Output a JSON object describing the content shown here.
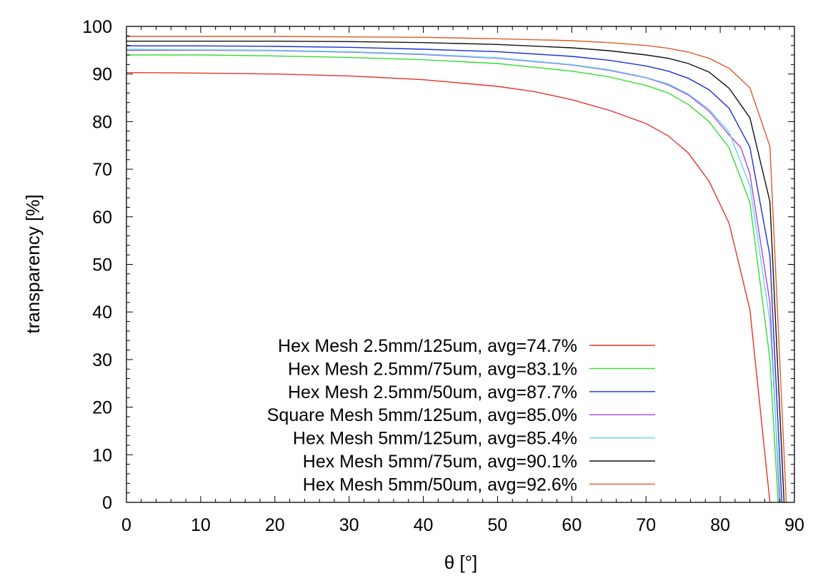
{
  "chart_data": {
    "type": "line",
    "xlabel": "θ [°]",
    "ylabel": "transparency [%]",
    "xlim": [
      0,
      90
    ],
    "ylim": [
      0,
      100
    ],
    "xticks": [
      0,
      10,
      20,
      30,
      40,
      50,
      60,
      70,
      80,
      90
    ],
    "yticks": [
      0,
      10,
      20,
      30,
      40,
      50,
      60,
      70,
      80,
      90,
      100
    ],
    "grid": false,
    "legend_position": "bottom-center",
    "series": [
      {
        "name": "Hex Mesh 2.5mm/125um, avg=74.7%",
        "color": "#e8332a",
        "points": [
          [
            0,
            90.3
          ],
          [
            10,
            90.2
          ],
          [
            20,
            90.0
          ],
          [
            30,
            89.6
          ],
          [
            40,
            88.8
          ],
          [
            50,
            87.4
          ],
          [
            55,
            86.3
          ],
          [
            60,
            84.6
          ],
          [
            65,
            82.4
          ],
          [
            70,
            79.6
          ],
          [
            73,
            77.0
          ],
          [
            75.7,
            73.4
          ],
          [
            78.5,
            67.5
          ],
          [
            81.2,
            58.6
          ],
          [
            84.0,
            40.5
          ],
          [
            86.7,
            0
          ]
        ]
      },
      {
        "name": "Hex Mesh 2.5mm/75um, avg=83.1%",
        "color": "#33dd33",
        "points": [
          [
            0,
            94.0
          ],
          [
            10,
            94.0
          ],
          [
            20,
            93.8
          ],
          [
            30,
            93.5
          ],
          [
            40,
            93.0
          ],
          [
            50,
            92.2
          ],
          [
            60,
            90.6
          ],
          [
            65,
            89.4
          ],
          [
            70,
            87.6
          ],
          [
            73,
            86.0
          ],
          [
            75.7,
            83.6
          ],
          [
            78.5,
            80.0
          ],
          [
            81.2,
            74.5
          ],
          [
            84.0,
            63.0
          ],
          [
            86.7,
            30.0
          ],
          [
            87.8,
            0
          ]
        ]
      },
      {
        "name": "Hex Mesh 2.5mm/50um, avg=87.7%",
        "color": "#1a2ed6",
        "points": [
          [
            0,
            95.9
          ],
          [
            10,
            95.9
          ],
          [
            20,
            95.8
          ],
          [
            30,
            95.6
          ],
          [
            40,
            95.2
          ],
          [
            50,
            94.7
          ],
          [
            60,
            93.7
          ],
          [
            65,
            92.9
          ],
          [
            70,
            91.7
          ],
          [
            73,
            90.6
          ],
          [
            75.7,
            89.1
          ],
          [
            78.5,
            86.7
          ],
          [
            81.2,
            82.8
          ],
          [
            84.0,
            74.6
          ],
          [
            86.7,
            51.8
          ],
          [
            88.3,
            0
          ]
        ]
      },
      {
        "name": "Square Mesh 5mm/125um, avg=85.0%",
        "color": "#b040e0",
        "points": [
          [
            0,
            95.0
          ],
          [
            10,
            95.0
          ],
          [
            20,
            94.9
          ],
          [
            30,
            94.6
          ],
          [
            40,
            94.1
          ],
          [
            50,
            93.3
          ],
          [
            60,
            91.9
          ],
          [
            65,
            90.8
          ],
          [
            70,
            89.2
          ],
          [
            73,
            87.7
          ],
          [
            75.7,
            85.6
          ],
          [
            78.5,
            82.2
          ],
          [
            81.2,
            77.2
          ],
          [
            82.8,
            74.5
          ],
          [
            84.0,
            69.0
          ],
          [
            86.7,
            42.0
          ],
          [
            88.0,
            0
          ]
        ]
      },
      {
        "name": "Hex Mesh 5mm/125um, avg=85.4%",
        "color": "#5fd8f0",
        "points": [
          [
            0,
            95.2
          ],
          [
            10,
            95.1
          ],
          [
            20,
            95.0
          ],
          [
            30,
            94.7
          ],
          [
            40,
            94.2
          ],
          [
            50,
            93.4
          ],
          [
            60,
            92.0
          ],
          [
            65,
            90.9
          ],
          [
            70,
            89.3
          ],
          [
            73,
            87.9
          ],
          [
            75.7,
            85.8
          ],
          [
            78.5,
            82.6
          ],
          [
            81.2,
            77.8
          ],
          [
            84.0,
            66.5
          ],
          [
            86.7,
            38.0
          ],
          [
            88.1,
            0
          ]
        ]
      },
      {
        "name": "Hex Mesh 5mm/75um, avg=90.1%",
        "color": "#111111",
        "points": [
          [
            0,
            96.9
          ],
          [
            10,
            96.9
          ],
          [
            20,
            96.9
          ],
          [
            30,
            96.8
          ],
          [
            40,
            96.6
          ],
          [
            50,
            96.2
          ],
          [
            60,
            95.5
          ],
          [
            65,
            94.9
          ],
          [
            70,
            94.0
          ],
          [
            73,
            93.3
          ],
          [
            75.7,
            92.2
          ],
          [
            78.5,
            90.4
          ],
          [
            81.2,
            87.0
          ],
          [
            84.0,
            80.8
          ],
          [
            86.7,
            63.2
          ],
          [
            88.6,
            0
          ]
        ]
      },
      {
        "name": "Hex Mesh 5mm/50um, avg=92.6%",
        "color": "#e05a2a",
        "points": [
          [
            0,
            97.9
          ],
          [
            10,
            97.9
          ],
          [
            20,
            97.9
          ],
          [
            30,
            97.8
          ],
          [
            40,
            97.7
          ],
          [
            50,
            97.4
          ],
          [
            60,
            97.0
          ],
          [
            65,
            96.6
          ],
          [
            70,
            96.0
          ],
          [
            73,
            95.4
          ],
          [
            75.7,
            94.6
          ],
          [
            78.5,
            93.3
          ],
          [
            81.2,
            91.2
          ],
          [
            84.0,
            87.1
          ],
          [
            86.7,
            74.8
          ],
          [
            88.9,
            0
          ]
        ]
      }
    ]
  }
}
